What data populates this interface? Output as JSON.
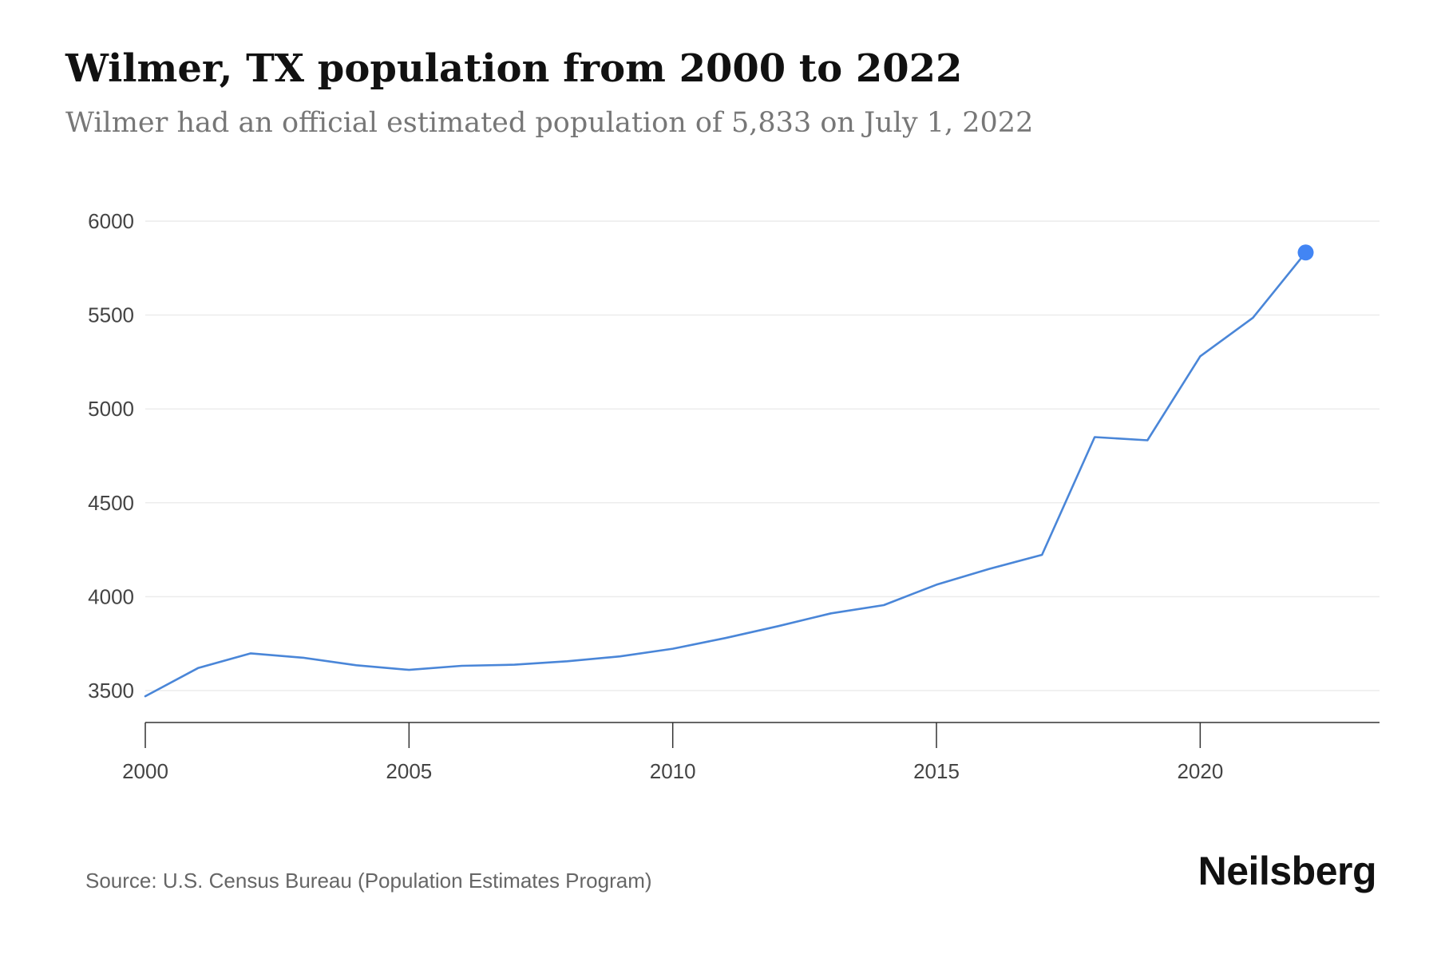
{
  "header": {
    "title": "Wilmer, TX population from 2000 to 2022",
    "subtitle": "Wilmer had an official estimated population of 5,833 on July 1, 2022"
  },
  "footer": {
    "source": "Source: U.S. Census Bureau (Population Estimates Program)",
    "brand": "Neilsberg"
  },
  "colors": {
    "line": "#4a86d8",
    "marker": "#4285f4",
    "grid": "#ececec",
    "axis": "#333333",
    "tick_text": "#444444"
  },
  "chart_data": {
    "type": "line",
    "title": "Wilmer, TX population from 2000 to 2022",
    "xlabel": "",
    "ylabel": "",
    "xlim": [
      2000,
      2023.4
    ],
    "ylim": [
      3330,
      6000
    ],
    "x_ticks": [
      2000,
      2005,
      2010,
      2015,
      2020
    ],
    "y_ticks": [
      3500,
      4000,
      4500,
      5000,
      5500,
      6000
    ],
    "grid": true,
    "legend": "none",
    "highlight_last_point": true,
    "series": [
      {
        "x": [
          2000,
          2001,
          2002,
          2003,
          2004,
          2005,
          2006,
          2007,
          2008,
          2009,
          2010,
          2011,
          2012,
          2013,
          2014,
          2015,
          2016,
          2017,
          2018,
          2019,
          2020,
          2021,
          2022
        ],
        "values": [
          3470,
          3620,
          3698,
          3675,
          3635,
          3610,
          3632,
          3638,
          3656,
          3682,
          3723,
          3780,
          3843,
          3911,
          3955,
          4064,
          4148,
          4223,
          4850,
          4833,
          5280,
          5485,
          5833
        ]
      }
    ]
  }
}
